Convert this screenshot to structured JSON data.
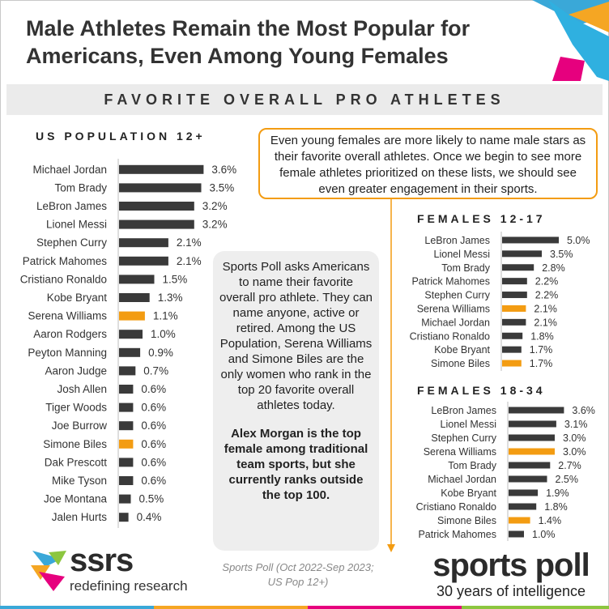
{
  "title": "Male Athletes Remain the Most Popular for Americans, Even Among Young Females",
  "subtitle": "FAVORITE OVERALL PRO ATHLETES",
  "callout": "Even young females are more likely  to name male stars as their favorite overall athletes. Once we begin to see more female athletes prioritized on these lists,  we should see even greater engagement in their sports.",
  "note": {
    "body": "Sports Poll asks Americans to name their favorite overall pro athlete. They can name anyone, active or retired. Among the US Population, Serena Williams and Simone Biles are the only women who rank in the top 20 favorite overall athletes today.",
    "bold": "Alex Morgan is the top female among traditional team sports, but she currently ranks outside the top 100."
  },
  "source": "Sports Poll (Oct 2022-Sep 2023; US Pop 12+)",
  "logos": {
    "ssrs_word": "ssrs",
    "ssrs_tag": "redefining research",
    "sp_word": "sports poll",
    "sp_tag": "30 years of intelligence"
  },
  "colors": {
    "male": "#3a3a3a",
    "female": "#f39c12",
    "accent": "#f39c12"
  },
  "chart_data": [
    {
      "type": "bar",
      "orientation": "horizontal",
      "title": "US POPULATION 12+",
      "categories": [
        "Michael Jordan",
        "Tom Brady",
        "LeBron James",
        "Lionel Messi",
        "Stephen Curry",
        "Patrick Mahomes",
        "Cristiano Ronaldo",
        "Kobe Bryant",
        "Serena Williams",
        "Aaron Rodgers",
        "Peyton Manning",
        "Aaron Judge",
        "Josh Allen",
        "Tiger Woods",
        "Joe Burrow",
        "Simone Biles",
        "Dak Prescott",
        "Mike Tyson",
        "Joe Montana",
        "Jalen Hurts"
      ],
      "values": [
        3.6,
        3.5,
        3.2,
        3.2,
        2.1,
        2.1,
        1.5,
        1.3,
        1.1,
        1.0,
        0.9,
        0.7,
        0.6,
        0.6,
        0.6,
        0.6,
        0.6,
        0.6,
        0.5,
        0.4
      ],
      "labels": [
        "3.6%",
        "3.5%",
        "3.2%",
        "3.2%",
        "2.1%",
        "2.1%",
        "1.5%",
        "1.3%",
        "1.1%",
        "1.0%",
        "0.9%",
        "0.7%",
        "0.6%",
        "0.6%",
        "0.6%",
        "0.6%",
        "0.6%",
        "0.6%",
        "0.5%",
        "0.4%"
      ],
      "female": [
        false,
        false,
        false,
        false,
        false,
        false,
        false,
        false,
        true,
        false,
        false,
        false,
        false,
        false,
        false,
        true,
        false,
        false,
        false,
        false
      ]
    },
    {
      "type": "bar",
      "orientation": "horizontal",
      "title": "FEMALES 12-17",
      "categories": [
        "LeBron James",
        "Lionel Messi",
        "Tom Brady",
        "Patrick Mahomes",
        "Stephen Curry",
        "Serena Williams",
        "Michael Jordan",
        "Cristiano Ronaldo",
        "Kobe Bryant",
        "Simone Biles"
      ],
      "values": [
        5.0,
        3.5,
        2.8,
        2.2,
        2.2,
        2.1,
        2.1,
        1.8,
        1.7,
        1.7
      ],
      "labels": [
        "5.0%",
        "3.5%",
        "2.8%",
        "2.2%",
        "2.2%",
        "2.1%",
        "2.1%",
        "1.8%",
        "1.7%",
        "1.7%"
      ],
      "female": [
        false,
        false,
        false,
        false,
        false,
        true,
        false,
        false,
        false,
        true
      ]
    },
    {
      "type": "bar",
      "orientation": "horizontal",
      "title": "FEMALES 18-34",
      "categories": [
        "LeBron James",
        "Lionel Messi",
        "Stephen Curry",
        "Serena Williams",
        "Tom Brady",
        "Michael Jordan",
        "Kobe Bryant",
        "Cristiano Ronaldo",
        "Simone Biles",
        "Patrick Mahomes"
      ],
      "values": [
        3.6,
        3.1,
        3.0,
        3.0,
        2.7,
        2.5,
        1.9,
        1.8,
        1.4,
        1.0
      ],
      "labels": [
        "3.6%",
        "3.1%",
        "3.0%",
        "3.0%",
        "2.7%",
        "2.5%",
        "1.9%",
        "1.8%",
        "1.4%",
        "1.0%"
      ],
      "female": [
        false,
        false,
        false,
        true,
        false,
        false,
        false,
        false,
        true,
        false
      ]
    }
  ]
}
